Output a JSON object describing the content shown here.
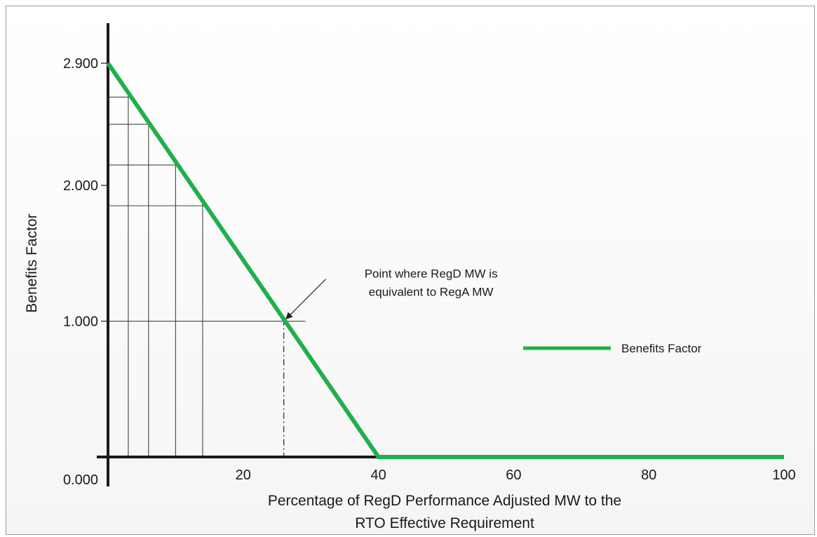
{
  "chart_data": {
    "type": "line",
    "ylabel": "Benefits Factor",
    "xlabel_lines": [
      "Percentage of RegD Performance Adjusted MW to the",
      "RTO Effective Requirement"
    ],
    "x_ticks": [
      20,
      40,
      60,
      80,
      100
    ],
    "y_ticks": [
      "0.000",
      "1.000",
      "2.000",
      "2.900"
    ],
    "xlim": [
      0,
      100
    ],
    "ylim": [
      0,
      2.9
    ],
    "legend": {
      "position": "right",
      "entries": [
        "Benefits Factor"
      ]
    },
    "series": [
      {
        "name": "Benefits Factor",
        "color": "#1fb04b",
        "points": [
          [
            0,
            2.9
          ],
          [
            40,
            0
          ],
          [
            100,
            0
          ]
        ]
      }
    ],
    "reference_grid": {
      "x": [
        3,
        6,
        10,
        14,
        26
      ],
      "y": [
        2.65,
        2.45,
        2.15,
        1.85,
        1.0
      ]
    },
    "annotation": {
      "lines": [
        "Point where RegD MW is",
        "equivalent to RegA MW"
      ],
      "x": 26,
      "y": 1.0
    }
  }
}
